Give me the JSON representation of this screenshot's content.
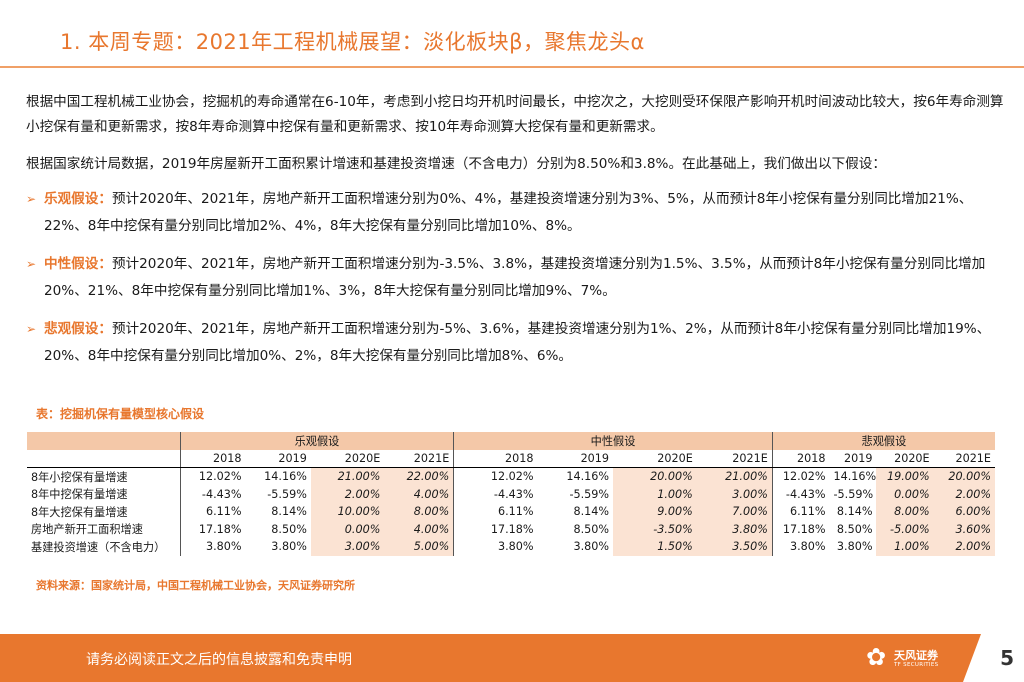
{
  "header": {
    "title": "1. 本周专题：2021年工程机械展望：淡化板块β，聚焦龙头α"
  },
  "body": {
    "para1": "根据中国工程机械工业协会，挖掘机的寿命通常在6-10年，考虑到小挖日均开机时间最长，中挖次之，大挖则受环保限产影响开机时间波动比较大，按6年寿命测算小挖保有量和更新需求，按8年寿命测算中挖保有量和更新需求、按10年寿命测算大挖保有量和更新需求。",
    "para2": "根据国家统计局数据，2019年房屋新开工面积累计增速和基建投资增速（不含电力）分别为8.50%和3.8%。在此基础上，我们做出以下假设：",
    "bullets": [
      {
        "label": "乐观假设：",
        "text": "预计2020年、2021年，房地产新开工面积增速分别为0%、4%，基建投资增速分别为3%、5%，从而预计8年小挖保有量分别同比增加21%、22%、8年中挖保有量分别同比增加2%、4%，8年大挖保有量分别同比增加10%、8%。"
      },
      {
        "label": "中性假设：",
        "text": "预计2020年、2021年，房地产新开工面积增速分别为-3.5%、3.8%，基建投资增速分别为1.5%、3.5%，从而预计8年小挖保有量分别同比增加20%、21%、8年中挖保有量分别同比增加1%、3%，8年大挖保有量分别同比增加9%、7%。"
      },
      {
        "label": "悲观假设：",
        "text": "预计2020年、2021年，房地产新开工面积增速分别为-5%、3.6%，基建投资增速分别为1%、2%，从而预计8年小挖保有量分别同比增加19%、20%、8年中挖保有量分别同比增加0%、2%，8年大挖保有量分别同比增加8%、6%。"
      }
    ]
  },
  "table": {
    "title": "表：挖掘机保有量模型核心假设",
    "groups": [
      "乐观假设",
      "中性假设",
      "悲观假设"
    ],
    "years": [
      "2018",
      "2019",
      "2020E",
      "2021E",
      "2018",
      "2019",
      "2020E",
      "2021E",
      "2018",
      "2019",
      "2020E",
      "2021E"
    ],
    "rows": [
      {
        "label": "8年小挖保有量增速",
        "values": [
          "12.02%",
          "14.16%",
          "21.00%",
          "22.00%",
          "12.02%",
          "14.16%",
          "20.00%",
          "21.00%",
          "12.02%",
          "14.16%",
          "19.00%",
          "20.00%"
        ]
      },
      {
        "label": "8年中挖保有量增速",
        "values": [
          "-4.43%",
          "-5.59%",
          "2.00%",
          "4.00%",
          "-4.43%",
          "-5.59%",
          "1.00%",
          "3.00%",
          "-4.43%",
          "-5.59%",
          "0.00%",
          "2.00%"
        ]
      },
      {
        "label": "8年大挖保有量增速",
        "values": [
          "6.11%",
          "8.14%",
          "10.00%",
          "8.00%",
          "6.11%",
          "8.14%",
          "9.00%",
          "7.00%",
          "6.11%",
          "8.14%",
          "8.00%",
          "6.00%"
        ]
      },
      {
        "label": "房地产新开工面积增速",
        "values": [
          "17.18%",
          "8.50%",
          "0.00%",
          "4.00%",
          "17.18%",
          "8.50%",
          "-3.50%",
          "3.80%",
          "17.18%",
          "8.50%",
          "-5.00%",
          "3.60%"
        ]
      },
      {
        "label": "基建投资增速（不含电力）",
        "values": [
          "3.80%",
          "3.80%",
          "3.00%",
          "5.00%",
          "3.80%",
          "3.80%",
          "1.50%",
          "3.50%",
          "3.80%",
          "3.80%",
          "1.00%",
          "2.00%"
        ]
      }
    ],
    "source": "资料来源：国家统计局，中国工程机械工业协会，天风证券研究所"
  },
  "footer": {
    "disclaimer": "请务必阅读正文之后的信息披露和免责申明",
    "logo_name": "天风证券",
    "logo_sub": "TF SECURITIES",
    "page_number": "5"
  },
  "colors": {
    "accent": "#e8772e",
    "header_fill": "#f4c8a8",
    "estimate_fill": "#fbe3d3"
  }
}
